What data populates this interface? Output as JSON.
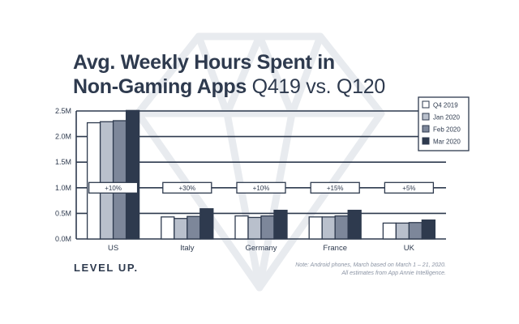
{
  "header": {
    "title_line1": "Avg. Weekly Hours Spent in",
    "title_line2_bold": "Non-Gaming Apps",
    "title_line2_light": "Q419 vs. Q120"
  },
  "footer": {
    "brand": "LEVEL UP.",
    "note_line1": "Note: Android phones, March based on March 1 – 21, 2020.",
    "note_line2": "All estimates from App Annie Intelligence."
  },
  "colors": {
    "q4_2019": "#ffffff",
    "jan_2020": "#b9c0cc",
    "feb_2020": "#7d879a",
    "mar_2020": "#2e3a4e",
    "ink": "#2e3a4e",
    "watermark": "#e8ebef"
  },
  "chart_data": {
    "type": "bar",
    "title": "Avg. Weekly Hours Spent in Non-Gaming Apps Q419 vs. Q120",
    "xlabel": "",
    "ylabel": "",
    "ylim": [
      0,
      2500000
    ],
    "yticks": [
      {
        "value": 0,
        "label": "0.0M"
      },
      {
        "value": 500000,
        "label": "0.5M"
      },
      {
        "value": 1000000,
        "label": "1.0M"
      },
      {
        "value": 1500000,
        "label": "1.5M"
      },
      {
        "value": 2000000,
        "label": "2.0M"
      },
      {
        "value": 2500000,
        "label": "2.5M"
      }
    ],
    "grid": true,
    "legend": "top-right",
    "categories": [
      "US",
      "Italy",
      "Germany",
      "France",
      "UK"
    ],
    "series": [
      {
        "name": "Q4 2019",
        "values": [
          2270000,
          430000,
          450000,
          430000,
          310000
        ]
      },
      {
        "name": "Jan 2020",
        "values": [
          2290000,
          400000,
          420000,
          430000,
          310000
        ]
      },
      {
        "name": "Feb 2020",
        "values": [
          2310000,
          440000,
          450000,
          450000,
          320000
        ]
      },
      {
        "name": "Mar 2020",
        "values": [
          2510000,
          590000,
          560000,
          560000,
          370000
        ]
      }
    ],
    "annotations": [
      "+10%",
      "+30%",
      "+10%",
      "+15%",
      "+5%"
    ]
  }
}
